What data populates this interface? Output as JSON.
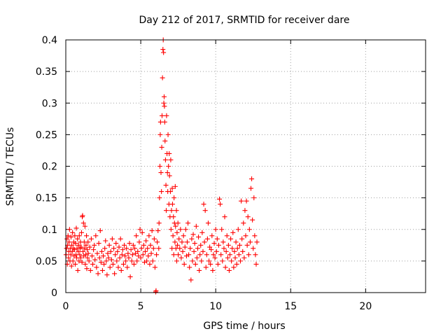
{
  "chart_data": {
    "type": "scatter",
    "title": "Day 212 of 2017, SRMTID for receiver dare",
    "xlabel": "GPS time / hours",
    "ylabel": "SRMTID / TECUs",
    "xlim": [
      0,
      24
    ],
    "ylim": [
      0,
      0.4
    ],
    "xticks": [
      0,
      5,
      10,
      15,
      20
    ],
    "xtick_labels": [
      "0",
      "5",
      "10",
      "15",
      "20"
    ],
    "yticks": [
      0,
      0.05,
      0.1,
      0.15,
      0.2,
      0.25,
      0.3,
      0.35,
      0.4
    ],
    "ytick_labels": [
      "0",
      "0.05",
      "0.1",
      "0.15",
      "0.2",
      "0.25",
      "0.3",
      "0.35",
      "0.4"
    ],
    "grid": true,
    "marker": "+",
    "series": [
      {
        "name": "SRMTID",
        "color": "#ff0000",
        "points": [
          [
            0.02,
            0.06
          ],
          [
            0.05,
            0.07
          ],
          [
            0.08,
            0.085
          ],
          [
            0.1,
            0.045
          ],
          [
            0.12,
            0.075
          ],
          [
            0.15,
            0.09
          ],
          [
            0.18,
            0.055
          ],
          [
            0.2,
            0.065
          ],
          [
            0.22,
            0.08
          ],
          [
            0.25,
            0.1
          ],
          [
            0.28,
            0.05
          ],
          [
            0.3,
            0.07
          ],
          [
            0.33,
            0.06
          ],
          [
            0.35,
            0.088
          ],
          [
            0.38,
            0.042
          ],
          [
            0.4,
            0.075
          ],
          [
            0.43,
            0.065
          ],
          [
            0.45,
            0.095
          ],
          [
            0.48,
            0.05
          ],
          [
            0.5,
            0.07
          ],
          [
            0.53,
            0.08
          ],
          [
            0.55,
            0.058
          ],
          [
            0.58,
            0.068
          ],
          [
            0.6,
            0.09
          ],
          [
            0.63,
            0.045
          ],
          [
            0.65,
            0.078
          ],
          [
            0.68,
            0.06
          ],
          [
            0.7,
            0.102
          ],
          [
            0.73,
            0.055
          ],
          [
            0.75,
            0.07
          ],
          [
            0.78,
            0.085
          ],
          [
            0.8,
            0.035
          ],
          [
            0.83,
            0.065
          ],
          [
            0.85,
            0.075
          ],
          [
            0.88,
            0.05
          ],
          [
            0.9,
            0.09
          ],
          [
            0.93,
            0.06
          ],
          [
            0.95,
            0.07
          ],
          [
            0.98,
            0.08
          ],
          [
            1.0,
            0.055
          ],
          [
            1.03,
            0.072
          ],
          [
            1.05,
            0.095
          ],
          [
            1.08,
            0.048
          ],
          [
            1.1,
            0.12
          ],
          [
            1.12,
            0.122
          ],
          [
            1.15,
            0.065
          ],
          [
            1.18,
            0.11
          ],
          [
            1.2,
            0.058
          ],
          [
            1.23,
            0.08
          ],
          [
            1.25,
            0.07
          ],
          [
            1.28,
            0.105
          ],
          [
            1.3,
            0.045
          ],
          [
            1.33,
            0.06
          ],
          [
            1.35,
            0.075
          ],
          [
            1.38,
            0.09
          ],
          [
            1.4,
            0.038
          ],
          [
            1.43,
            0.068
          ],
          [
            1.45,
            0.055
          ],
          [
            1.48,
            0.08
          ],
          [
            1.5,
            0.062
          ],
          [
            1.55,
            0.05
          ],
          [
            1.6,
            0.072
          ],
          [
            1.65,
            0.035
          ],
          [
            1.7,
            0.085
          ],
          [
            1.75,
            0.058
          ],
          [
            1.8,
            0.045
          ],
          [
            1.85,
            0.068
          ],
          [
            1.9,
            0.075
          ],
          [
            1.95,
            0.052
          ],
          [
            2.0,
            0.09
          ],
          [
            2.05,
            0.04
          ],
          [
            2.1,
            0.062
          ],
          [
            2.15,
            0.03
          ],
          [
            2.2,
            0.078
          ],
          [
            2.25,
            0.055
          ],
          [
            2.3,
            0.098
          ],
          [
            2.35,
            0.048
          ],
          [
            2.4,
            0.065
          ],
          [
            2.45,
            0.035
          ],
          [
            2.5,
            0.058
          ],
          [
            2.55,
            0.045
          ],
          [
            2.6,
            0.07
          ],
          [
            2.65,
            0.082
          ],
          [
            2.7,
            0.05
          ],
          [
            2.75,
            0.028
          ],
          [
            2.8,
            0.062
          ],
          [
            2.85,
            0.055
          ],
          [
            2.9,
            0.075
          ],
          [
            2.95,
            0.04
          ],
          [
            3.0,
            0.065
          ],
          [
            3.05,
            0.052
          ],
          [
            3.1,
            0.085
          ],
          [
            3.15,
            0.045
          ],
          [
            3.2,
            0.07
          ],
          [
            3.25,
            0.03
          ],
          [
            3.3,
            0.06
          ],
          [
            3.35,
            0.078
          ],
          [
            3.4,
            0.05
          ],
          [
            3.45,
            0.065
          ],
          [
            3.5,
            0.04
          ],
          [
            3.55,
            0.072
          ],
          [
            3.6,
            0.055
          ],
          [
            3.65,
            0.085
          ],
          [
            3.7,
            0.035
          ],
          [
            3.75,
            0.06
          ],
          [
            3.8,
            0.068
          ],
          [
            3.85,
            0.045
          ],
          [
            3.9,
            0.075
          ],
          [
            3.95,
            0.058
          ],
          [
            4.0,
            0.05
          ],
          [
            4.05,
            0.07
          ],
          [
            4.1,
            0.04
          ],
          [
            4.15,
            0.062
          ],
          [
            4.2,
            0.055
          ],
          [
            4.25,
            0.078
          ],
          [
            4.3,
            0.025
          ],
          [
            4.35,
            0.068
          ],
          [
            4.4,
            0.05
          ],
          [
            4.45,
            0.06
          ],
          [
            4.5,
            0.075
          ],
          [
            4.55,
            0.045
          ],
          [
            4.6,
            0.07
          ],
          [
            4.65,
            0.062
          ],
          [
            4.7,
            0.09
          ],
          [
            4.75,
            0.05
          ],
          [
            4.8,
            0.065
          ],
          [
            4.85,
            0.058
          ],
          [
            4.9,
            0.08
          ],
          [
            4.95,
            0.1
          ],
          [
            5.0,
            0.055
          ],
          [
            5.05,
            0.07
          ],
          [
            5.1,
            0.095
          ],
          [
            5.15,
            0.06
          ],
          [
            5.2,
            0.075
          ],
          [
            5.25,
            0.048
          ],
          [
            5.3,
            0.065
          ],
          [
            5.35,
            0.082
          ],
          [
            5.4,
            0.05
          ],
          [
            5.45,
            0.07
          ],
          [
            5.5,
            0.058
          ],
          [
            5.55,
            0.09
          ],
          [
            5.6,
            0.045
          ],
          [
            5.65,
            0.075
          ],
          [
            5.7,
            0.062
          ],
          [
            5.75,
            0.098
          ],
          [
            5.8,
            0.05
          ],
          [
            5.85,
            0.07
          ],
          [
            5.9,
            0.085
          ],
          [
            5.95,
            0.04
          ],
          [
            6.0,
            0.001
          ],
          [
            6.02,
            0.003
          ],
          [
            6.05,
            0.06
          ],
          [
            6.1,
            0.08
          ],
          [
            6.15,
            0.098
          ],
          [
            6.2,
            0.07
          ],
          [
            6.22,
            0.11
          ],
          [
            6.25,
            0.15
          ],
          [
            6.28,
            0.2
          ],
          [
            6.3,
            0.25
          ],
          [
            6.32,
            0.27
          ],
          [
            6.35,
            0.19
          ],
          [
            6.38,
            0.16
          ],
          [
            6.4,
            0.23
          ],
          [
            6.42,
            0.28
          ],
          [
            6.45,
            0.34
          ],
          [
            6.48,
            0.385
          ],
          [
            6.5,
            0.4
          ],
          [
            6.52,
            0.38
          ],
          [
            6.54,
            0.3
          ],
          [
            6.56,
            0.31
          ],
          [
            6.58,
            0.295
          ],
          [
            6.6,
            0.27
          ],
          [
            6.62,
            0.24
          ],
          [
            6.65,
            0.21
          ],
          [
            6.68,
            0.17
          ],
          [
            6.7,
            0.13
          ],
          [
            6.72,
            0.28
          ],
          [
            6.75,
            0.22
          ],
          [
            6.78,
            0.19
          ],
          [
            6.8,
            0.16
          ],
          [
            6.82,
            0.25
          ],
          [
            6.85,
            0.2
          ],
          [
            6.88,
            0.14
          ],
          [
            6.9,
            0.22
          ],
          [
            6.92,
            0.185
          ],
          [
            6.95,
            0.12
          ],
          [
            6.98,
            0.16
          ],
          [
            7.0,
            0.21
          ],
          [
            7.02,
            0.1
          ],
          [
            7.05,
            0.13
          ],
          [
            7.08,
            0.07
          ],
          [
            7.1,
            0.165
          ],
          [
            7.12,
            0.14
          ],
          [
            7.15,
            0.09
          ],
          [
            7.18,
            0.12
          ],
          [
            7.2,
            0.06
          ],
          [
            7.22,
            0.15
          ],
          [
            7.25,
            0.11
          ],
          [
            7.28,
            0.08
          ],
          [
            7.3,
            0.168
          ],
          [
            7.32,
            0.105
          ],
          [
            7.35,
            0.07
          ],
          [
            7.38,
            0.13
          ],
          [
            7.4,
            0.05
          ],
          [
            7.42,
            0.095
          ],
          [
            7.45,
            0.075
          ],
          [
            7.48,
            0.11
          ],
          [
            7.5,
            0.06
          ],
          [
            7.55,
            0.085
          ],
          [
            7.6,
            0.07
          ],
          [
            7.65,
            0.1
          ],
          [
            7.7,
            0.055
          ],
          [
            7.75,
            0.08
          ],
          [
            7.8,
            0.065
          ],
          [
            7.85,
            0.09
          ],
          [
            7.9,
            0.045
          ],
          [
            7.95,
            0.072
          ],
          [
            8.0,
            0.1
          ],
          [
            8.05,
            0.058
          ],
          [
            8.1,
            0.08
          ],
          [
            8.15,
            0.11
          ],
          [
            8.2,
            0.06
          ],
          [
            8.25,
            0.04
          ],
          [
            8.3,
            0.07
          ],
          [
            8.35,
            0.02
          ],
          [
            8.4,
            0.085
          ],
          [
            8.45,
            0.05
          ],
          [
            8.5,
            0.092
          ],
          [
            8.55,
            0.065
          ],
          [
            8.6,
            0.078
          ],
          [
            8.65,
            0.045
          ],
          [
            8.7,
            0.105
          ],
          [
            8.75,
            0.055
          ],
          [
            8.8,
            0.07
          ],
          [
            8.85,
            0.088
          ],
          [
            8.9,
            0.035
          ],
          [
            8.95,
            0.06
          ],
          [
            9.0,
            0.075
          ],
          [
            9.05,
            0.05
          ],
          [
            9.1,
            0.095
          ],
          [
            9.15,
            0.065
          ],
          [
            9.2,
            0.14
          ],
          [
            9.25,
            0.08
          ],
          [
            9.3,
            0.13
          ],
          [
            9.35,
            0.04
          ],
          [
            9.4,
            0.06
          ],
          [
            9.45,
            0.085
          ],
          [
            9.5,
            0.11
          ],
          [
            9.55,
            0.05
          ],
          [
            9.6,
            0.072
          ],
          [
            9.65,
            0.045
          ],
          [
            9.7,
            0.068
          ],
          [
            9.75,
            0.09
          ],
          [
            9.8,
            0.035
          ],
          [
            9.85,
            0.06
          ],
          [
            9.9,
            0.078
          ],
          [
            9.95,
            0.055
          ],
          [
            10.0,
            0.1
          ],
          [
            10.05,
            0.065
          ],
          [
            10.1,
            0.085
          ],
          [
            10.15,
            0.045
          ],
          [
            10.2,
            0.075
          ],
          [
            10.25,
            0.148
          ],
          [
            10.3,
            0.14
          ],
          [
            10.35,
            0.06
          ],
          [
            10.4,
            0.1
          ],
          [
            10.45,
            0.05
          ],
          [
            10.5,
            0.08
          ],
          [
            10.55,
            0.07
          ],
          [
            10.6,
            0.12
          ],
          [
            10.65,
            0.04
          ],
          [
            10.7,
            0.065
          ],
          [
            10.75,
            0.09
          ],
          [
            10.8,
            0.055
          ],
          [
            10.85,
            0.075
          ],
          [
            10.9,
            0.035
          ],
          [
            10.95,
            0.06
          ],
          [
            11.0,
            0.085
          ],
          [
            11.05,
            0.05
          ],
          [
            11.1,
            0.07
          ],
          [
            11.15,
            0.095
          ],
          [
            11.2,
            0.04
          ],
          [
            11.25,
            0.065
          ],
          [
            11.3,
            0.055
          ],
          [
            11.35,
            0.08
          ],
          [
            11.4,
            0.045
          ],
          [
            11.45,
            0.07
          ],
          [
            11.5,
            0.1
          ],
          [
            11.55,
            0.06
          ],
          [
            11.6,
            0.075
          ],
          [
            11.65,
            0.05
          ],
          [
            11.7,
            0.145
          ],
          [
            11.75,
            0.085
          ],
          [
            11.8,
            0.065
          ],
          [
            11.85,
            0.11
          ],
          [
            11.9,
            0.055
          ],
          [
            11.95,
            0.13
          ],
          [
            12.0,
            0.09
          ],
          [
            12.05,
            0.145
          ],
          [
            12.1,
            0.075
          ],
          [
            12.15,
            0.12
          ],
          [
            12.2,
            0.06
          ],
          [
            12.25,
            0.1
          ],
          [
            12.3,
            0.08
          ],
          [
            12.35,
            0.165
          ],
          [
            12.4,
            0.18
          ],
          [
            12.45,
            0.115
          ],
          [
            12.5,
            0.07
          ],
          [
            12.55,
            0.15
          ],
          [
            12.6,
            0.09
          ],
          [
            12.65,
            0.06
          ],
          [
            12.7,
            0.045
          ],
          [
            12.75,
            0.08
          ]
        ]
      }
    ]
  }
}
